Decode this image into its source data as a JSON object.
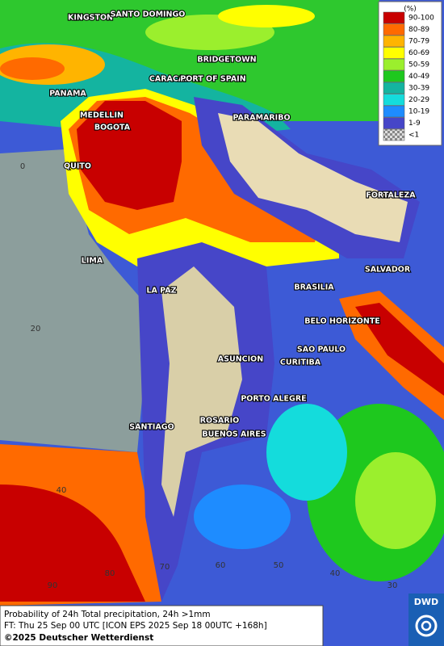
{
  "legend": {
    "title": "(%)",
    "items": [
      {
        "label": "90-100",
        "color": "#c80000"
      },
      {
        "label": "80-89",
        "color": "#ff6a00"
      },
      {
        "label": "70-79",
        "color": "#ffb400"
      },
      {
        "label": "60-69",
        "color": "#ffff00"
      },
      {
        "label": "50-59",
        "color": "#9bef2d"
      },
      {
        "label": "40-49",
        "color": "#1ec81e"
      },
      {
        "label": "30-39",
        "color": "#14b4a0"
      },
      {
        "label": "20-29",
        "color": "#14dcdc"
      },
      {
        "label": "10-19",
        "color": "#1e8cff"
      },
      {
        "label": "1-9",
        "color": "#4646c8"
      },
      {
        "label": "<1",
        "color": "#b4b4b4"
      }
    ]
  },
  "cities": [
    "KINGSTON",
    "SANTO DOMINGO",
    "BRIDGETOWN",
    "PANAMA",
    "CARACAS",
    "PORT OF SPAIN",
    "MEDELLIN",
    "BOGOTA",
    "PARAMARIBO",
    "QUITO",
    "FORTALEZA",
    "LIMA",
    "SALVADOR",
    "LA PAZ",
    "BRASILIA",
    "BELO HORIZONTE",
    "SAO PAULO",
    "ASUNCION",
    "CURITIBA",
    "PORTO ALEGRE",
    "ROSARIO",
    "SANTIAGO",
    "BUENOS AIRES"
  ],
  "grid_labels": [
    "0",
    "20",
    "40",
    "90",
    "80",
    "70",
    "60",
    "50",
    "40",
    "30"
  ],
  "footer": {
    "line1": "Probability of 24h Total precipitation, 24h >1mm",
    "line2": "FT: Thu 25 Sep 00 UTC [ICON EPS 2025 Sep 18 00UTC +168h]",
    "line3": "©2025 Deutscher Wetterdienst"
  },
  "logo": "DWD"
}
